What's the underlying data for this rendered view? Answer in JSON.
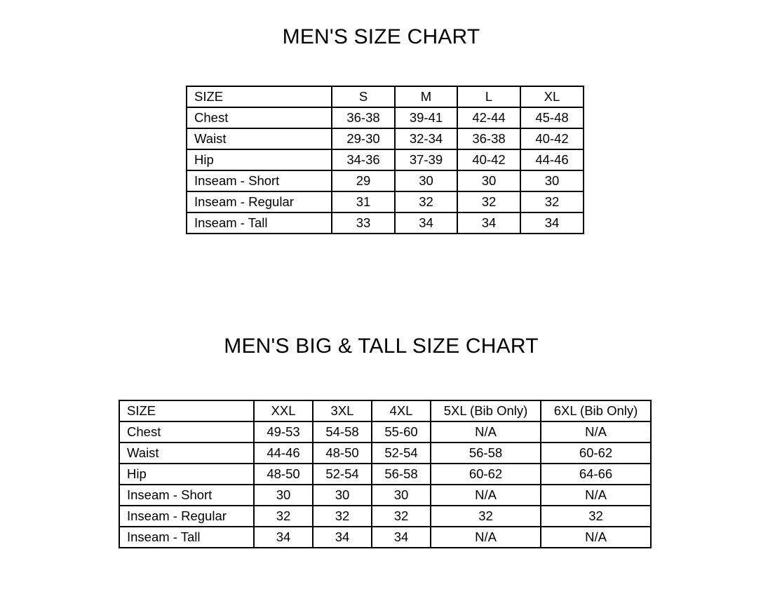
{
  "charts": [
    {
      "title": "MEN'S SIZE CHART",
      "header": [
        "SIZE",
        "S",
        "M",
        "L",
        "XL"
      ],
      "rows": [
        [
          "Chest",
          "36-38",
          "39-41",
          "42-44",
          "45-48"
        ],
        [
          "Waist",
          "29-30",
          "32-34",
          "36-38",
          "40-42"
        ],
        [
          "Hip",
          "34-36",
          "37-39",
          "40-42",
          "44-46"
        ],
        [
          "Inseam - Short",
          "29",
          "30",
          "30",
          "30"
        ],
        [
          "Inseam - Regular",
          "31",
          "32",
          "32",
          "32"
        ],
        [
          "Inseam - Tall",
          "33",
          "34",
          "34",
          "34"
        ]
      ]
    },
    {
      "title": "MEN'S BIG & TALL SIZE CHART",
      "header": [
        "SIZE",
        "XXL",
        "3XL",
        "4XL",
        "5XL (Bib Only)",
        "6XL (Bib Only)"
      ],
      "rows": [
        [
          "Chest",
          "49-53",
          "54-58",
          "55-60",
          "N/A",
          "N/A"
        ],
        [
          "Waist",
          "44-46",
          "48-50",
          "52-54",
          "56-58",
          "60-62"
        ],
        [
          "Hip",
          "48-50",
          "52-54",
          "56-58",
          "60-62",
          "64-66"
        ],
        [
          "Inseam - Short",
          "30",
          "30",
          "30",
          "N/A",
          "N/A"
        ],
        [
          "Inseam - Regular",
          "32",
          "32",
          "32",
          "32",
          "32"
        ],
        [
          "Inseam - Tall",
          "34",
          "34",
          "34",
          "N/A",
          "N/A"
        ]
      ]
    }
  ]
}
